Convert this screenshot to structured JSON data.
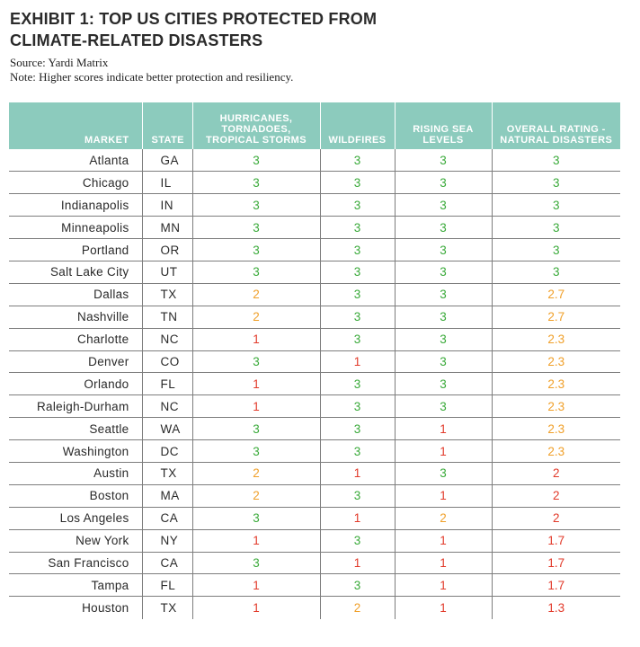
{
  "exhibit": {
    "title_line1": "EXHIBIT 1: TOP US CITIES PROTECTED FROM",
    "title_line2": "CLIMATE-RELATED DISASTERS",
    "source": "Source: Yardi Matrix",
    "note": "Note: Higher scores indicate better protection and resiliency."
  },
  "colors": {
    "header_bg": "#8ccbbd",
    "score_high": "#3aaa3a",
    "score_mid": "#f0a02a",
    "score_low": "#e23a2a"
  },
  "table": {
    "headers": {
      "market": "MARKET",
      "state": "STATE",
      "hurricanes_l1": "HURRICANES,",
      "hurricanes_l2": "TORNADOES,",
      "hurricanes_l3": "TROPICAL STORMS",
      "wildfires": "WILDFIRES",
      "rising_l1": "RISING SEA",
      "rising_l2": "LEVELS",
      "overall_l1": "OVERALL RATING -",
      "overall_l2": "NATURAL DISASTERS"
    },
    "rows": [
      {
        "market": "Atlanta",
        "state": "GA",
        "hurricanes": "3",
        "wildfires": "3",
        "sea": "3",
        "overall": "3",
        "c": [
          "g",
          "g",
          "g",
          "g"
        ]
      },
      {
        "market": "Chicago",
        "state": "IL",
        "hurricanes": "3",
        "wildfires": "3",
        "sea": "3",
        "overall": "3",
        "c": [
          "g",
          "g",
          "g",
          "g"
        ]
      },
      {
        "market": "Indianapolis",
        "state": "IN",
        "hurricanes": "3",
        "wildfires": "3",
        "sea": "3",
        "overall": "3",
        "c": [
          "g",
          "g",
          "g",
          "g"
        ]
      },
      {
        "market": "Minneapolis",
        "state": "MN",
        "hurricanes": "3",
        "wildfires": "3",
        "sea": "3",
        "overall": "3",
        "c": [
          "g",
          "g",
          "g",
          "g"
        ]
      },
      {
        "market": "Portland",
        "state": "OR",
        "hurricanes": "3",
        "wildfires": "3",
        "sea": "3",
        "overall": "3",
        "c": [
          "g",
          "g",
          "g",
          "g"
        ]
      },
      {
        "market": "Salt Lake City",
        "state": "UT",
        "hurricanes": "3",
        "wildfires": "3",
        "sea": "3",
        "overall": "3",
        "c": [
          "g",
          "g",
          "g",
          "g"
        ]
      },
      {
        "market": "Dallas",
        "state": "TX",
        "hurricanes": "2",
        "wildfires": "3",
        "sea": "3",
        "overall": "2.7",
        "c": [
          "o",
          "g",
          "g",
          "o"
        ]
      },
      {
        "market": "Nashville",
        "state": "TN",
        "hurricanes": "2",
        "wildfires": "3",
        "sea": "3",
        "overall": "2.7",
        "c": [
          "o",
          "g",
          "g",
          "o"
        ]
      },
      {
        "market": "Charlotte",
        "state": "NC",
        "hurricanes": "1",
        "wildfires": "3",
        "sea": "3",
        "overall": "2.3",
        "c": [
          "r",
          "g",
          "g",
          "o"
        ]
      },
      {
        "market": "Denver",
        "state": "CO",
        "hurricanes": "3",
        "wildfires": "1",
        "sea": "3",
        "overall": "2.3",
        "c": [
          "g",
          "r",
          "g",
          "o"
        ]
      },
      {
        "market": "Orlando",
        "state": "FL",
        "hurricanes": "1",
        "wildfires": "3",
        "sea": "3",
        "overall": "2.3",
        "c": [
          "r",
          "g",
          "g",
          "o"
        ]
      },
      {
        "market": "Raleigh-Durham",
        "state": "NC",
        "hurricanes": "1",
        "wildfires": "3",
        "sea": "3",
        "overall": "2.3",
        "c": [
          "r",
          "g",
          "g",
          "o"
        ]
      },
      {
        "market": "Seattle",
        "state": "WA",
        "hurricanes": "3",
        "wildfires": "3",
        "sea": "1",
        "overall": "2.3",
        "c": [
          "g",
          "g",
          "r",
          "o"
        ]
      },
      {
        "market": "Washington",
        "state": "DC",
        "hurricanes": "3",
        "wildfires": "3",
        "sea": "1",
        "overall": "2.3",
        "c": [
          "g",
          "g",
          "r",
          "o"
        ]
      },
      {
        "market": "Austin",
        "state": "TX",
        "hurricanes": "2",
        "wildfires": "1",
        "sea": "3",
        "overall": "2",
        "c": [
          "o",
          "r",
          "g",
          "r"
        ]
      },
      {
        "market": "Boston",
        "state": "MA",
        "hurricanes": "2",
        "wildfires": "3",
        "sea": "1",
        "overall": "2",
        "c": [
          "o",
          "g",
          "r",
          "r"
        ]
      },
      {
        "market": "Los Angeles",
        "state": "CA",
        "hurricanes": "3",
        "wildfires": "1",
        "sea": "2",
        "overall": "2",
        "c": [
          "g",
          "r",
          "o",
          "r"
        ]
      },
      {
        "market": "New York",
        "state": "NY",
        "hurricanes": "1",
        "wildfires": "3",
        "sea": "1",
        "overall": "1.7",
        "c": [
          "r",
          "g",
          "r",
          "r"
        ]
      },
      {
        "market": "San Francisco",
        "state": "CA",
        "hurricanes": "3",
        "wildfires": "1",
        "sea": "1",
        "overall": "1.7",
        "c": [
          "g",
          "r",
          "r",
          "r"
        ]
      },
      {
        "market": "Tampa",
        "state": "FL",
        "hurricanes": "1",
        "wildfires": "3",
        "sea": "1",
        "overall": "1.7",
        "c": [
          "r",
          "g",
          "r",
          "r"
        ]
      },
      {
        "market": "Houston",
        "state": "TX",
        "hurricanes": "1",
        "wildfires": "2",
        "sea": "1",
        "overall": "1.3",
        "c": [
          "r",
          "o",
          "r",
          "r"
        ]
      }
    ]
  }
}
